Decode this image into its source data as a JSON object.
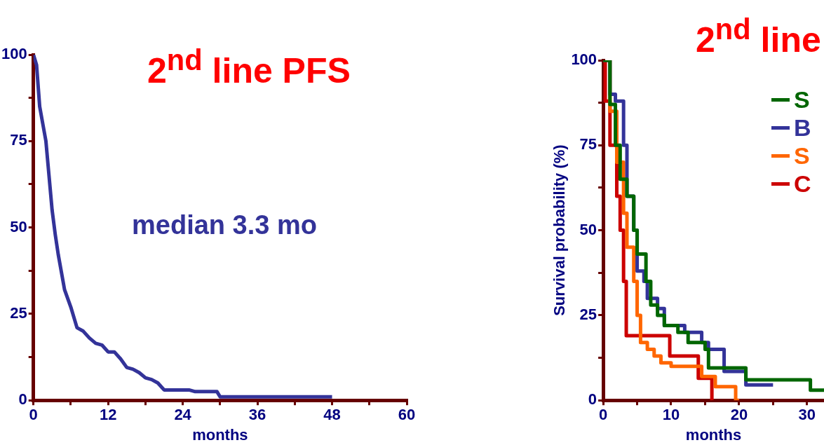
{
  "chart_data": [
    {
      "type": "line",
      "title": "2$^{nd}$ line PFS",
      "xlabel": "months",
      "annotations": [
        "median 3.3 mo"
      ],
      "legend": false,
      "grid": false,
      "marker": "none",
      "xlim": [
        0,
        60
      ],
      "xticks": [
        0,
        {
          "value": 6,
          "label": null
        },
        12,
        {
          "value": 18,
          "label": null
        },
        24,
        {
          "value": 30,
          "label": null
        },
        36,
        {
          "value": 42,
          "label": null
        },
        48,
        {
          "value": 54,
          "label": null
        },
        60
      ],
      "ylim": [
        0,
        100
      ],
      "yticks": [
        0,
        {
          "value": 12.5,
          "label": null
        },
        25,
        {
          "value": 37.5,
          "label": null
        },
        50,
        {
          "value": 62.5,
          "label": null
        },
        75,
        {
          "value": 87.5,
          "label": null
        },
        100
      ],
      "series": [
        {
          "color": "#333399",
          "x": [
            0,
            0.5,
            1,
            1.5,
            2,
            2.5,
            3,
            3.5,
            4,
            5,
            6,
            7,
            8,
            9,
            10,
            11,
            12,
            13,
            14,
            15,
            16,
            17,
            18,
            19,
            20,
            21,
            22,
            25,
            26,
            29.5,
            30,
            48
          ],
          "values": [
            100,
            97,
            85,
            80,
            75,
            65,
            55,
            48,
            42,
            32,
            27,
            21,
            20,
            18,
            16.5,
            16,
            14,
            14,
            12,
            9.5,
            9,
            8,
            6.5,
            6,
            5,
            3,
            3,
            3,
            2.5,
            2.5,
            1,
            1
          ]
        }
      ]
    },
    {
      "type": "step",
      "title": "2$^{nd}$ line",
      "xlabel": "months",
      "ylabel": "Survival probability (%)",
      "legend": "top right",
      "grid": false,
      "marker": "none",
      "xlim": [
        0,
        32.5
      ],
      "xticks": [
        0,
        {
          "value": 5,
          "label": null
        },
        10,
        {
          "value": 15,
          "label": null
        },
        20,
        {
          "value": 25,
          "label": null
        },
        30
      ],
      "ylim": [
        0,
        100
      ],
      "yticks": [
        0,
        {
          "value": 12.5,
          "label": null
        },
        25,
        {
          "value": 37.5,
          "label": null
        },
        50,
        {
          "value": 62.5,
          "label": null
        },
        75,
        {
          "value": 87.5,
          "label": null
        },
        100
      ],
      "series": [
        {
          "name": "S",
          "color": "#006600",
          "x": [
            0,
            1,
            1.8,
            2.5,
            3.5,
            4.5,
            5,
            6.3,
            7,
            8,
            9,
            11,
            12.5,
            15,
            15.5,
            21,
            30.5,
            32.5
          ],
          "values": [
            100,
            87,
            75,
            65,
            60,
            50,
            43,
            35,
            28,
            25,
            22,
            20,
            17,
            15,
            9.5,
            6,
            3,
            3
          ]
        },
        {
          "name": "B",
          "color": "#333399",
          "x": [
            0,
            1,
            1.8,
            3,
            3.5,
            4.5,
            5,
            6,
            6.5,
            8,
            9,
            12,
            14.5,
            15.5,
            17.8,
            21,
            25
          ],
          "values": [
            100,
            90,
            88,
            75,
            60,
            50,
            38,
            35,
            30,
            27,
            22,
            20,
            17,
            15,
            8.5,
            4.5,
            4.5
          ]
        },
        {
          "name": "S",
          "color": "#ff6600",
          "x": [
            0,
            1,
            2,
            3,
            3.5,
            4.5,
            5,
            5.5,
            6.5,
            7.5,
            8.5,
            10,
            14.5,
            16.5,
            19.5,
            20
          ],
          "values": [
            100,
            85,
            70,
            55,
            45,
            35,
            25,
            17,
            15,
            13,
            11,
            10,
            7,
            4,
            0,
            0
          ]
        },
        {
          "name": "C",
          "color": "#cc0000",
          "x": [
            0,
            0.3,
            1,
            2,
            2.5,
            3,
            3.4,
            9.8,
            14,
            16,
            16.01
          ],
          "values": [
            100,
            88,
            75,
            60,
            50,
            35,
            19,
            13,
            6.5,
            0,
            0
          ]
        }
      ]
    }
  ]
}
